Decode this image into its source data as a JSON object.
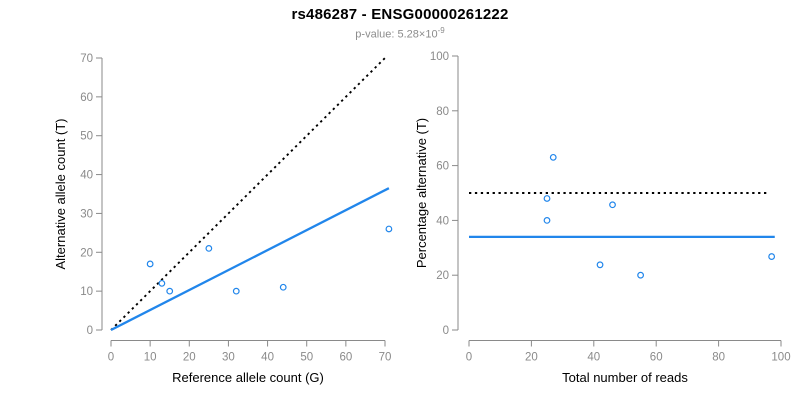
{
  "header": {
    "title": "rs486287 - ENSG00000261222",
    "subtitle_prefix": "p-value: 5.28×10",
    "subtitle_exponent": "-9"
  },
  "colors": {
    "accent_blue": "#2186eb",
    "line_black": "#000000",
    "axis_gray": "#8a8a8a",
    "tick_label_gray": "#8a8a8a",
    "axis_title_black": "#000000"
  },
  "chart_data": [
    {
      "type": "scatter",
      "panel": "left",
      "xlabel": "Reference allele count (G)",
      "ylabel": "Alternative allele count (T)",
      "xlim": [
        0,
        70
      ],
      "ylim": [
        0,
        70
      ],
      "xticks": [
        0,
        10,
        20,
        30,
        40,
        50,
        60,
        70
      ],
      "yticks": [
        0,
        10,
        20,
        30,
        40,
        50,
        60,
        70
      ],
      "grid": false,
      "legend": "none",
      "points": [
        [
          10,
          17
        ],
        [
          13,
          12
        ],
        [
          15,
          10
        ],
        [
          25,
          21
        ],
        [
          32,
          10
        ],
        [
          44,
          11
        ],
        [
          71,
          26
        ]
      ],
      "lines": [
        {
          "name": "identity-line",
          "style": "dotted",
          "color_key": "line_black",
          "from": [
            0,
            0
          ],
          "to": [
            70.5,
            70.5
          ]
        },
        {
          "name": "regression-line",
          "style": "solid",
          "color_key": "accent_blue",
          "from": [
            0,
            0
          ],
          "to": [
            71,
            36.5
          ]
        }
      ]
    },
    {
      "type": "scatter",
      "panel": "right",
      "xlabel": "Total number of reads",
      "ylabel": "Percentage alternative (T)",
      "xlim": [
        0,
        100
      ],
      "ylim": [
        0,
        100
      ],
      "xticks": [
        0,
        20,
        40,
        60,
        80,
        100
      ],
      "yticks": [
        0,
        20,
        40,
        60,
        80,
        100
      ],
      "grid": false,
      "legend": "none",
      "points": [
        [
          27,
          63
        ],
        [
          25,
          48
        ],
        [
          25,
          40
        ],
        [
          46,
          45.7
        ],
        [
          42,
          23.8
        ],
        [
          55,
          20
        ],
        [
          97,
          26.8
        ]
      ],
      "lines": [
        {
          "name": "fifty-percent-line",
          "style": "dotted",
          "color_key": "line_black",
          "from": [
            0,
            50
          ],
          "to": [
            96,
            50
          ]
        },
        {
          "name": "mean-percentage-line",
          "style": "solid",
          "color_key": "accent_blue",
          "from": [
            0,
            34
          ],
          "to": [
            98,
            34
          ]
        }
      ]
    }
  ]
}
